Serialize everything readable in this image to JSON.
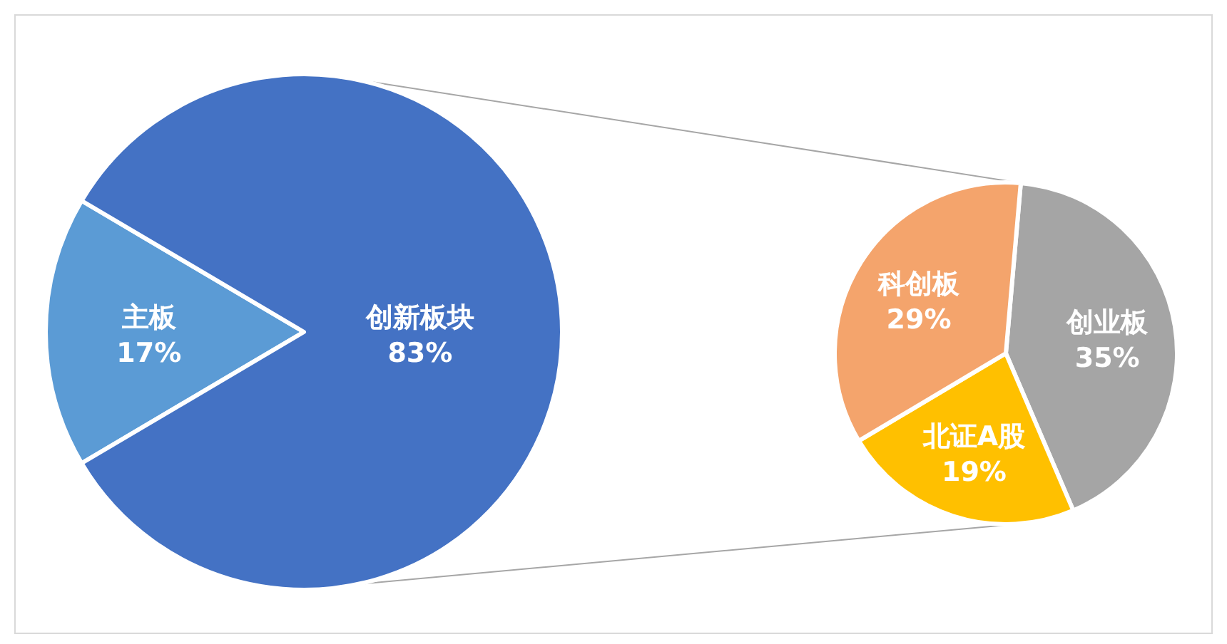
{
  "chart_data": [
    {
      "type": "pie",
      "categories": [
        "主板",
        "创新板块"
      ],
      "values": [
        17,
        83
      ],
      "colors": [
        "#5b9bd5",
        "#4472c4"
      ],
      "value_labels": [
        "17%",
        "83%"
      ]
    },
    {
      "type": "pie",
      "categories": [
        "创业板",
        "北证A股",
        "科创板"
      ],
      "values": [
        35,
        19,
        29
      ],
      "colors": [
        "#a5a5a5",
        "#ffc000",
        "#f4a46c"
      ],
      "value_labels": [
        "35%",
        "19%",
        "29%"
      ]
    }
  ]
}
